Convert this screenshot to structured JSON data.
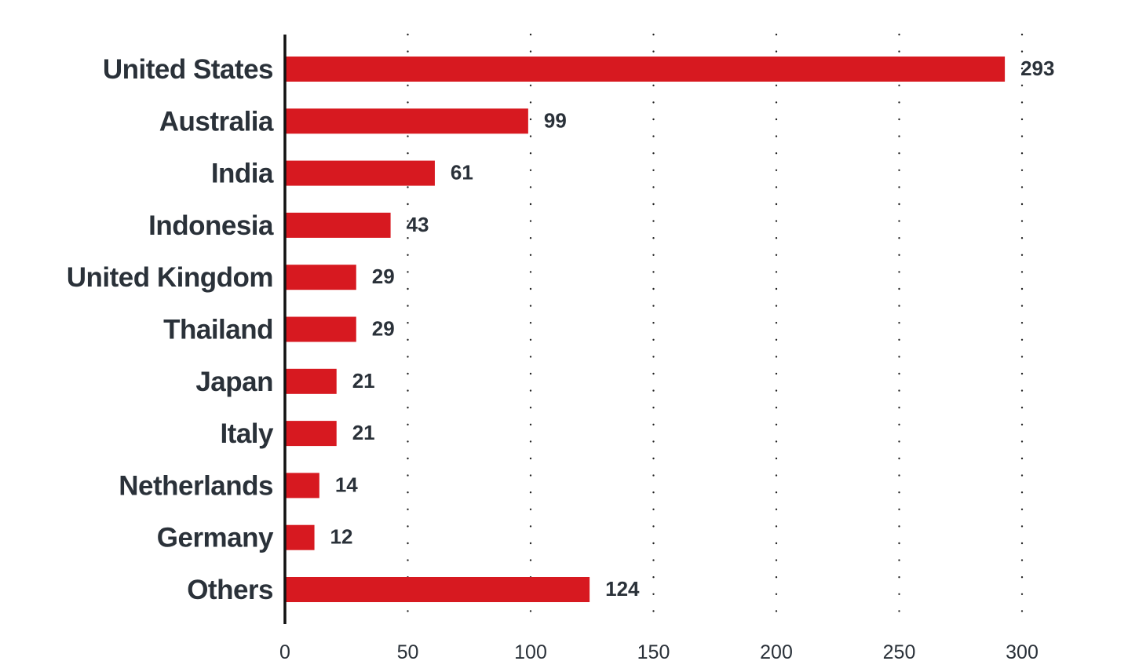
{
  "chart_data": {
    "type": "bar",
    "orientation": "horizontal",
    "title": "",
    "xlabel": "",
    "ylabel": "",
    "categories": [
      "United States",
      "Australia",
      "India",
      "Indonesia",
      "United Kingdom",
      "Thailand",
      "Japan",
      "Italy",
      "Netherlands",
      "Germany",
      "Others"
    ],
    "values": [
      293,
      99,
      61,
      43,
      29,
      29,
      21,
      21,
      14,
      12,
      124
    ],
    "xlim": [
      0,
      300
    ],
    "xticks": [
      0,
      50,
      100,
      150,
      200,
      250,
      300
    ],
    "xtick_labels": [
      "0",
      "50",
      "100",
      "150",
      "200",
      "250",
      "300"
    ],
    "grid": "vertical dotted",
    "legend": "none",
    "data_labels": true
  },
  "colors": {
    "bar": "#d71920",
    "text": "#2a3139",
    "axis": "#111111",
    "grid": "#222222"
  }
}
